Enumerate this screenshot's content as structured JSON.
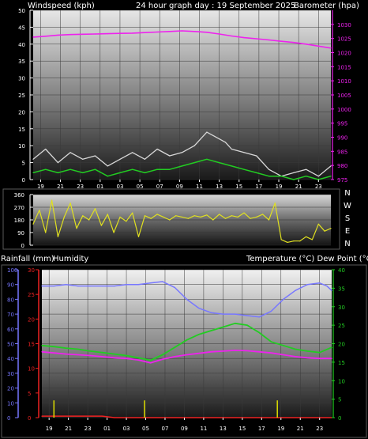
{
  "header": {
    "left": "Windspeed (kph)",
    "center": "24 hour graph day : 19 September 2025",
    "right": "Barometer (hpa)"
  },
  "compass": [
    "N",
    "W",
    "S",
    "E",
    "N"
  ],
  "mid_header": {
    "rainfall": "Rainfall (mm)",
    "humidity": "Humidity",
    "temp_dew": "Temperature (°C) Dew Point (°C)"
  },
  "colors": {
    "wind_avg": "#22cc22",
    "wind_gust": "#d8d8d8",
    "barometer": "#ee22ee",
    "direction": "#e0e020",
    "humidity": "#7777ff",
    "temperature": "#ee22ee",
    "dew_point": "#22cc22",
    "rain": "#ee2222",
    "rain_rate": "#dddd00"
  },
  "chart_data": [
    {
      "type": "line",
      "title": "24 hour graph day : 19 September 2025",
      "ylabel": "Windspeed (kph)",
      "y2label": "Barometer (hpa)",
      "ylim": [
        0,
        50
      ],
      "y2lim": [
        975,
        1035
      ],
      "yticks": [
        "0",
        "5",
        "10",
        "15",
        "20",
        "25",
        "30",
        "35",
        "40",
        "45",
        "50"
      ],
      "y2ticks": [
        "975",
        "980",
        "985",
        "990",
        "995",
        "1000",
        "1005",
        "1010",
        "1015",
        "1020",
        "1025",
        "1030"
      ],
      "xticks": [
        "19",
        "21",
        "23",
        "01",
        "03",
        "05",
        "07",
        "09",
        "11",
        "13",
        "15",
        "17",
        "19",
        "21",
        "23"
      ],
      "series": [
        {
          "name": "Barometer",
          "x": [
            0,
            1,
            2,
            3,
            4,
            5,
            6,
            7,
            8,
            9,
            10,
            11,
            12,
            13,
            14,
            15,
            16,
            17,
            18,
            19,
            20,
            21,
            22,
            23,
            24
          ],
          "values": [
            1025.5,
            1025.8,
            1026.2,
            1026.4,
            1026.5,
            1026.6,
            1026.7,
            1026.8,
            1026.9,
            1027.1,
            1027.3,
            1027.5,
            1027.7,
            1027.5,
            1027.2,
            1026.6,
            1025.9,
            1025.3,
            1024.9,
            1024.5,
            1024.0,
            1023.6,
            1023.0,
            1022.3,
            1021.6
          ]
        },
        {
          "name": "Gust",
          "x": [
            0,
            1,
            2,
            3,
            4,
            5,
            6,
            7,
            8,
            9,
            10,
            11,
            12,
            13,
            14,
            15,
            15.5,
            16,
            17,
            18,
            19,
            20,
            21,
            22,
            23,
            24
          ],
          "values": [
            6,
            9,
            5,
            8,
            6,
            7,
            4,
            6,
            8,
            6,
            9,
            7,
            8,
            10,
            14,
            12,
            11,
            9,
            8,
            7,
            3,
            1,
            2,
            3,
            1,
            4
          ]
        },
        {
          "name": "Average",
          "x": [
            0,
            1,
            2,
            3,
            4,
            5,
            6,
            7,
            8,
            9,
            10,
            11,
            12,
            13,
            14,
            15,
            16,
            17,
            18,
            19,
            20,
            21,
            22,
            23,
            24
          ],
          "values": [
            2,
            3,
            2,
            3,
            2,
            3,
            1,
            2,
            3,
            2,
            3,
            3,
            4,
            5,
            6,
            5,
            4,
            3,
            2,
            1,
            1,
            0,
            1,
            0,
            1
          ]
        }
      ]
    },
    {
      "type": "line",
      "ylabel": "Wind direction",
      "ylim": [
        0,
        360
      ],
      "yticks": [
        "0",
        "90",
        "180",
        "270",
        "360"
      ],
      "series": [
        {
          "name": "Direction",
          "x": [
            0,
            0.5,
            1,
            1.5,
            2,
            2.5,
            3,
            3.5,
            4,
            4.5,
            5,
            5.5,
            6,
            6.5,
            7,
            7.5,
            8,
            8.5,
            9,
            9.5,
            10,
            10.5,
            11,
            11.5,
            12,
            12.5,
            13,
            13.5,
            14,
            14.5,
            15,
            15.5,
            16,
            16.5,
            17,
            17.5,
            18,
            18.5,
            19,
            19.5,
            20,
            20.5,
            21,
            21.5,
            22,
            22.5,
            23,
            23.5,
            24
          ],
          "values": [
            150,
            250,
            90,
            320,
            60,
            200,
            300,
            120,
            210,
            180,
            260,
            140,
            220,
            90,
            200,
            170,
            230,
            60,
            210,
            190,
            220,
            200,
            180,
            210,
            200,
            190,
            210,
            200,
            215,
            180,
            220,
            190,
            210,
            200,
            230,
            190,
            200,
            220,
            180,
            300,
            40,
            20,
            30,
            30,
            60,
            40,
            150,
            100,
            120
          ]
        }
      ]
    },
    {
      "type": "line",
      "ylabel": "Rainfall (mm)",
      "y2label": "Temperature (°C) Dew Point (°C)",
      "ylim": [
        0,
        30
      ],
      "y2lim": [
        0,
        40
      ],
      "y3label": "Humidity",
      "y3lim": [
        0,
        100
      ],
      "yticks_humidity": [
        "0",
        "10",
        "20",
        "30",
        "40",
        "50",
        "60",
        "70",
        "80",
        "90",
        "100"
      ],
      "yticks_rain": [
        "0",
        "5",
        "10",
        "15",
        "20",
        "25",
        "30"
      ],
      "yticks_temp": [
        "0",
        "5",
        "10",
        "15",
        "20",
        "25",
        "30",
        "35",
        "40"
      ],
      "xticks": [
        "19",
        "21",
        "23",
        "01",
        "03",
        "05",
        "07",
        "09",
        "11",
        "13",
        "15",
        "17",
        "19",
        "21",
        "23"
      ],
      "series": [
        {
          "name": "Humidity",
          "x": [
            0,
            1,
            2,
            3,
            4,
            5,
            6,
            7,
            8,
            9,
            10,
            11,
            12,
            13,
            14,
            15,
            16,
            17,
            18,
            19,
            20,
            21,
            22,
            23,
            23.6,
            24
          ],
          "values": [
            89,
            89,
            90,
            89,
            89,
            89,
            89,
            90,
            90,
            91,
            92,
            88,
            80,
            74,
            71,
            70,
            70,
            69,
            68,
            72,
            80,
            86,
            90,
            91,
            89,
            86
          ]
        },
        {
          "name": "Temperature",
          "x": [
            0,
            1,
            2,
            3,
            4,
            5,
            6,
            7,
            8,
            9,
            10,
            11,
            12,
            13,
            14,
            15,
            16,
            17,
            18,
            19,
            20,
            21,
            22,
            23,
            24
          ],
          "values": [
            17.8,
            17.5,
            17.2,
            17.0,
            16.8,
            16.5,
            16.2,
            16.0,
            15.6,
            14.8,
            15.8,
            16.5,
            17.0,
            17.4,
            17.8,
            18.0,
            18.2,
            18.1,
            17.8,
            17.5,
            17.0,
            16.5,
            16.2,
            16.0,
            16.0
          ]
        },
        {
          "name": "Dew Point",
          "x": [
            0,
            1,
            2,
            3,
            4,
            5,
            6,
            7,
            8,
            9,
            10,
            11,
            12,
            13,
            14,
            15,
            16,
            17,
            18,
            19,
            20,
            21,
            22,
            23,
            24
          ],
          "values": [
            19.5,
            19.2,
            18.8,
            18.5,
            18.0,
            17.6,
            17.2,
            16.8,
            16.2,
            15.5,
            17.0,
            19.0,
            21.0,
            22.5,
            23.5,
            24.5,
            25.5,
            25.0,
            23.0,
            20.5,
            19.5,
            18.5,
            18.0,
            17.6,
            19.0
          ]
        },
        {
          "name": "Rain",
          "x": [
            0,
            5,
            6,
            24
          ],
          "values": [
            0.3,
            0.3,
            0,
            0
          ]
        },
        {
          "name": "Rain rate",
          "x": [
            1,
            8.5,
            19.5
          ],
          "values": [
            3.5,
            3.5,
            3.5
          ]
        }
      ]
    }
  ]
}
